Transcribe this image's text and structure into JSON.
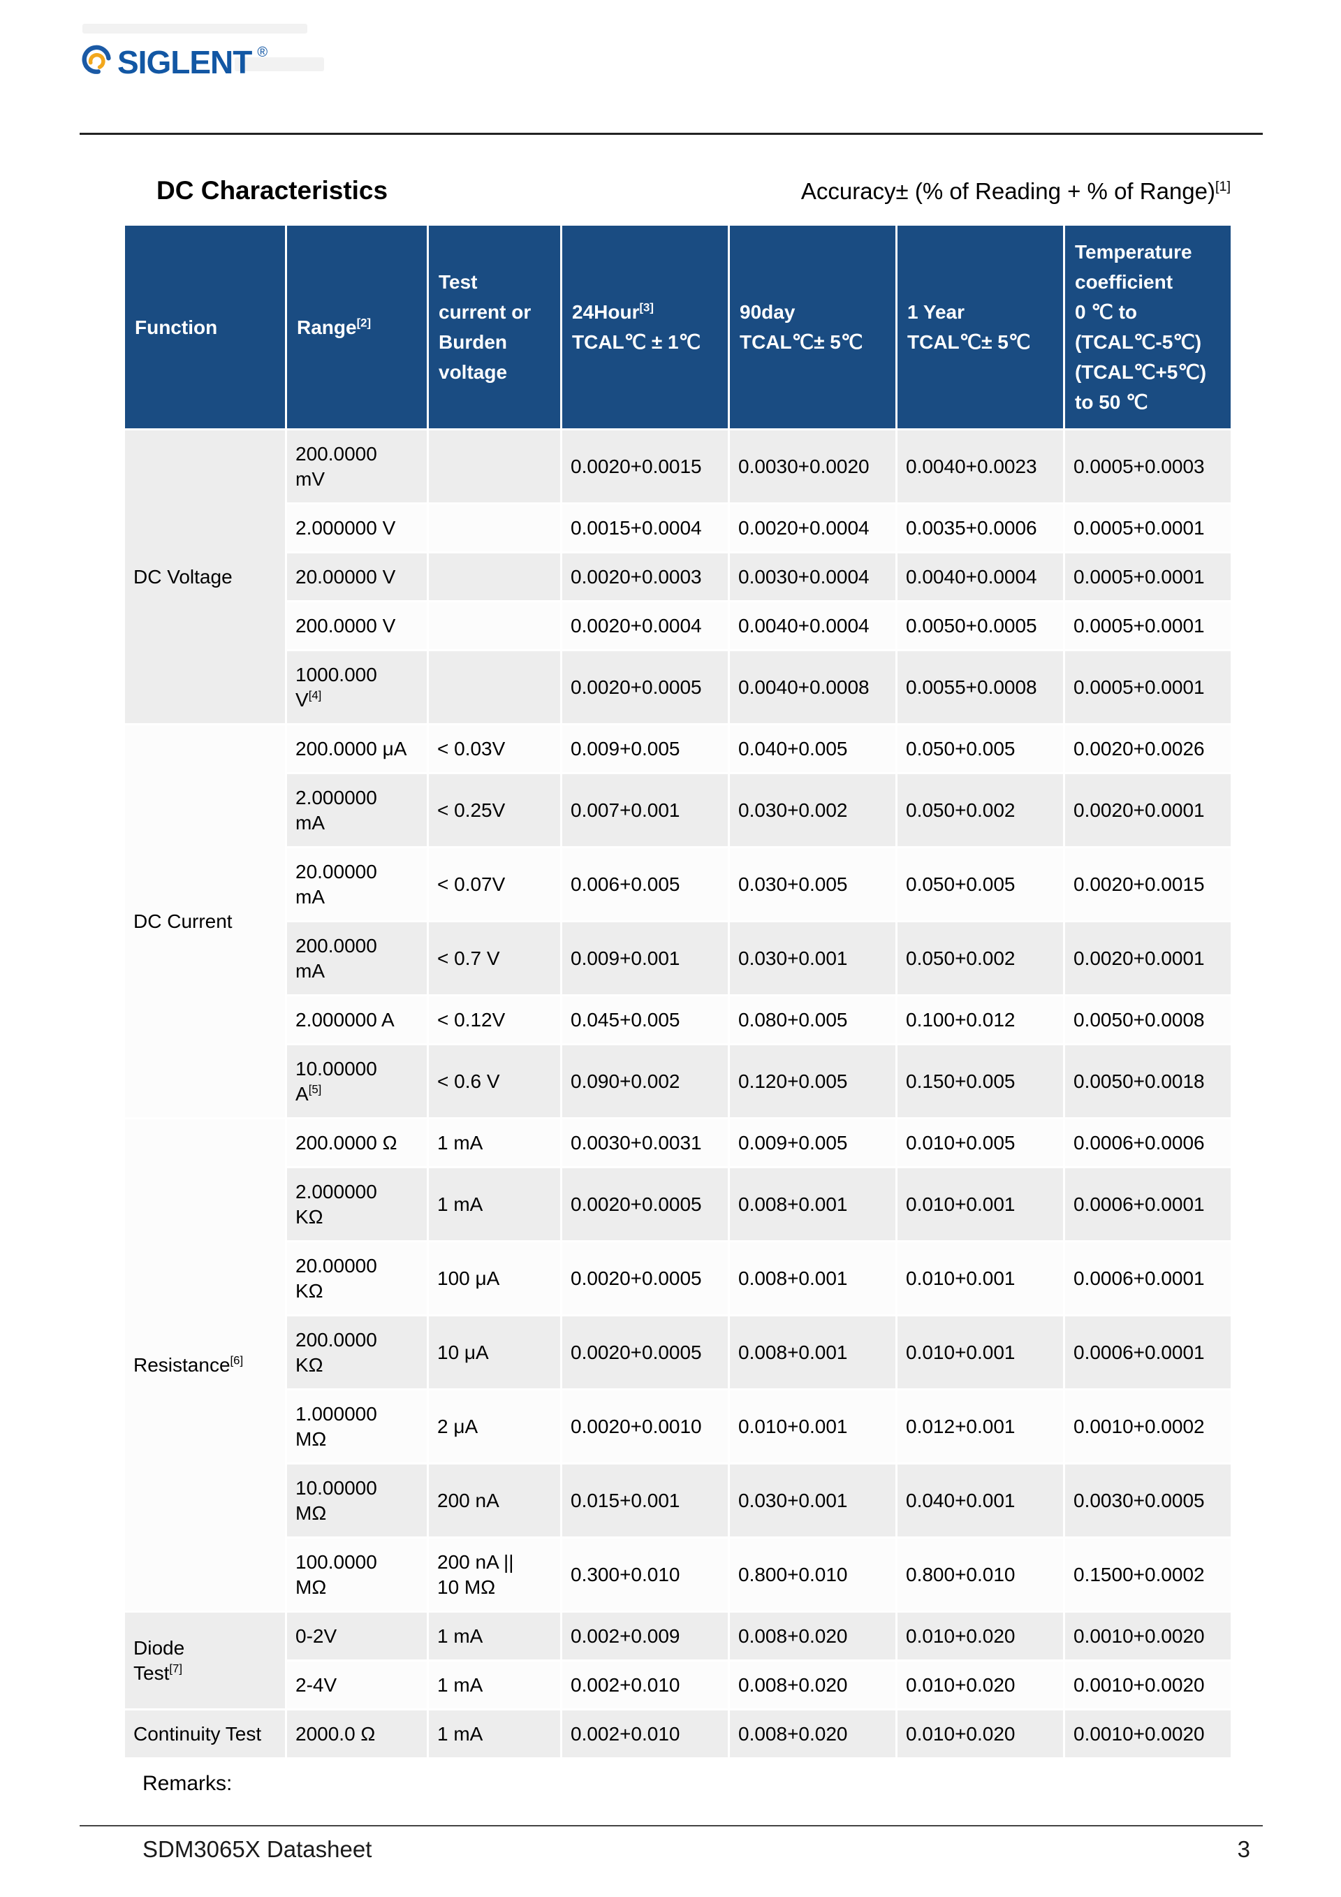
{
  "page": {
    "logo_text": "SIGLENT",
    "logo_reg": "®",
    "title": "DC Characteristics",
    "accuracy_note": "Accuracy± (% of Reading + % of Range)[1]",
    "remarks": "Remarks:",
    "footer_left": "SDM3065X Datasheet",
    "footer_page": "3"
  },
  "colors": {
    "header_bg": "#1a4c82",
    "stripe_gray": "#ededed",
    "logo_blue": "#1257a4",
    "logo_accent": "#f2a71c"
  },
  "table": {
    "header": {
      "function": "Function",
      "range": "Range[2]",
      "test": "Test\ncurrent or\nBurden\nvoltage",
      "h24": "24Hour[3]\nTCAL℃ ± 1℃",
      "d90": "90day\nTCAL℃± 5℃",
      "y1": "1 Year\nTCAL℃± 5℃",
      "tc": "Temperature\ncoefficient\n0 ℃ to\n(TCAL℃-5℃)\n(TCAL℃+5℃)\nto 50 ℃"
    },
    "groups": [
      {
        "function": "DC Voltage",
        "rows": [
          {
            "range": "200.0000\nmV",
            "test": "",
            "h24": "0.0020+0.0015",
            "d90": "0.0030+0.0020",
            "y1": "0.0040+0.0023",
            "tc": "0.0005+0.0003"
          },
          {
            "range": "2.000000 V",
            "test": "",
            "h24": "0.0015+0.0004",
            "d90": "0.0020+0.0004",
            "y1": "0.0035+0.0006",
            "tc": "0.0005+0.0001"
          },
          {
            "range": "20.00000 V",
            "test": "",
            "h24": "0.0020+0.0003",
            "d90": "0.0030+0.0004",
            "y1": "0.0040+0.0004",
            "tc": "0.0005+0.0001"
          },
          {
            "range": "200.0000 V",
            "test": "",
            "h24": "0.0020+0.0004",
            "d90": "0.0040+0.0004",
            "y1": "0.0050+0.0005",
            "tc": "0.0005+0.0001"
          },
          {
            "range": "1000.000\nV[4]",
            "test": "",
            "h24": "0.0020+0.0005",
            "d90": "0.0040+0.0008",
            "y1": "0.0055+0.0008",
            "tc": "0.0005+0.0001"
          }
        ]
      },
      {
        "function": "DC Current",
        "rows": [
          {
            "range": "200.0000 μA",
            "test": "< 0.03V",
            "h24": "0.009+0.005",
            "d90": "0.040+0.005",
            "y1": "0.050+0.005",
            "tc": "0.0020+0.0026"
          },
          {
            "range": "2.000000\nmA",
            "test": "< 0.25V",
            "h24": "0.007+0.001",
            "d90": "0.030+0.002",
            "y1": "0.050+0.002",
            "tc": "0.0020+0.0001"
          },
          {
            "range": "20.00000\nmA",
            "test": "< 0.07V",
            "h24": "0.006+0.005",
            "d90": "0.030+0.005",
            "y1": "0.050+0.005",
            "tc": "0.0020+0.0015"
          },
          {
            "range": "200.0000\nmA",
            "test": "< 0.7 V",
            "h24": "0.009+0.001",
            "d90": "0.030+0.001",
            "y1": "0.050+0.002",
            "tc": "0.0020+0.0001"
          },
          {
            "range": "2.000000 A",
            "test": "< 0.12V",
            "h24": "0.045+0.005",
            "d90": "0.080+0.005",
            "y1": "0.100+0.012",
            "tc": "0.0050+0.0008"
          },
          {
            "range": "10.00000\nA[5]",
            "test": "< 0.6 V",
            "h24": "0.090+0.002",
            "d90": "0.120+0.005",
            "y1": "0.150+0.005",
            "tc": "0.0050+0.0018"
          }
        ]
      },
      {
        "function": "Resistance[6]",
        "rows": [
          {
            "range": "200.0000 Ω",
            "test": "1 mA",
            "h24": "0.0030+0.0031",
            "d90": "0.009+0.005",
            "y1": "0.010+0.005",
            "tc": "0.0006+0.0006"
          },
          {
            "range": "2.000000\nKΩ",
            "test": "1 mA",
            "h24": "0.0020+0.0005",
            "d90": "0.008+0.001",
            "y1": "0.010+0.001",
            "tc": "0.0006+0.0001"
          },
          {
            "range": "20.00000\nKΩ",
            "test": "100 μA",
            "h24": "0.0020+0.0005",
            "d90": "0.008+0.001",
            "y1": "0.010+0.001",
            "tc": "0.0006+0.0001"
          },
          {
            "range": "200.0000\nKΩ",
            "test": "10 μA",
            "h24": "0.0020+0.0005",
            "d90": "0.008+0.001",
            "y1": "0.010+0.001",
            "tc": "0.0006+0.0001"
          },
          {
            "range": "1.000000\nMΩ",
            "test": "2 μA",
            "h24": "0.0020+0.0010",
            "d90": "0.010+0.001",
            "y1": "0.012+0.001",
            "tc": "0.0010+0.0002"
          },
          {
            "range": "10.00000\nMΩ",
            "test": "200 nA",
            "h24": "0.015+0.001",
            "d90": "0.030+0.001",
            "y1": "0.040+0.001",
            "tc": "0.0030+0.0005"
          },
          {
            "range": "100.0000\nMΩ",
            "test": "200 nA ||\n10 MΩ",
            "h24": "0.300+0.010",
            "d90": "0.800+0.010",
            "y1": "0.800+0.010",
            "tc": "0.1500+0.0002"
          }
        ]
      },
      {
        "function": "Diode\nTest[7]",
        "rows": [
          {
            "range": "0-2V",
            "test": "1 mA",
            "h24": "0.002+0.009",
            "d90": "0.008+0.020",
            "y1": "0.010+0.020",
            "tc": "0.0010+0.0020"
          },
          {
            "range": "2-4V",
            "test": "1 mA",
            "h24": "0.002+0.010",
            "d90": "0.008+0.020",
            "y1": "0.010+0.020",
            "tc": "0.0010+0.0020"
          }
        ]
      },
      {
        "function": "Continuity Test",
        "rows": [
          {
            "range": "2000.0 Ω",
            "test": "1 mA",
            "h24": "0.002+0.010",
            "d90": "0.008+0.020",
            "y1": "0.010+0.020",
            "tc": "0.0010+0.0020"
          }
        ]
      }
    ]
  }
}
